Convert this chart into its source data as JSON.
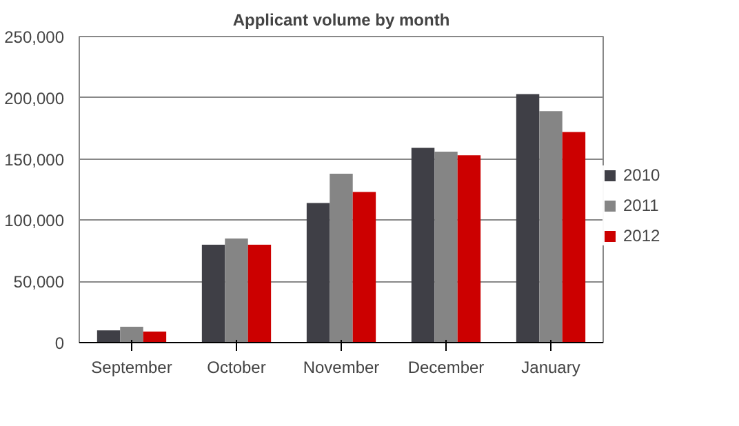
{
  "chart_data": {
    "type": "bar",
    "title": "Applicant volume by month",
    "categories": [
      "September",
      "October",
      "November",
      "December",
      "January"
    ],
    "series": [
      {
        "name": "2010",
        "color": "#3f3f46",
        "values": [
          10000,
          80000,
          114000,
          159000,
          203000
        ]
      },
      {
        "name": "2011",
        "color": "#858585",
        "values": [
          13000,
          85000,
          138000,
          156000,
          189000
        ]
      },
      {
        "name": "2012",
        "color": "#cc0000",
        "values": [
          9000,
          80000,
          123000,
          153000,
          172000
        ]
      }
    ],
    "ylim": [
      0,
      250000
    ],
    "yticks": [
      {
        "value": 0,
        "label": "0"
      },
      {
        "value": 50000,
        "label": "50,000"
      },
      {
        "value": 100000,
        "label": "100,000"
      },
      {
        "value": 150000,
        "label": "150,000"
      },
      {
        "value": 200000,
        "label": "200,000"
      },
      {
        "value": 250000,
        "label": "250,000"
      }
    ],
    "grid": "y",
    "legend": "right"
  }
}
